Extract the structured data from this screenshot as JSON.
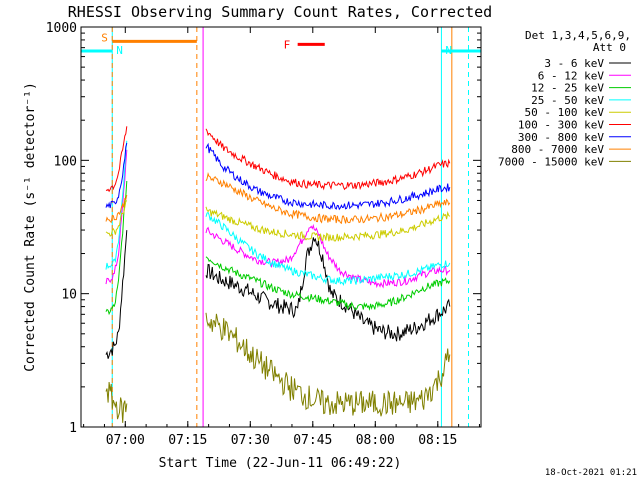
{
  "chart_data": {
    "type": "line",
    "title": "RHESSI Observing Summary Count Rates, Corrected",
    "xlabel": "Start Time (22-Jun-11 06:49:22)",
    "ylabel": "Corrected Count Rate (s⁻¹ detector⁻¹)",
    "x_unit": "minutes after 06:49:22",
    "xlim": [
      0,
      96
    ],
    "ylim": [
      1,
      1000
    ],
    "yscale": "log",
    "x_ticks": [
      {
        "label": "07:00",
        "value": 10.63
      },
      {
        "label": "07:15",
        "value": 25.63
      },
      {
        "label": "07:30",
        "value": 40.63
      },
      {
        "label": "07:45",
        "value": 55.63
      },
      {
        "label": "08:00",
        "value": 70.63
      },
      {
        "label": "08:15",
        "value": 85.63
      }
    ],
    "y_ticks": [
      {
        "label": "1",
        "value": 1
      },
      {
        "label": "10",
        "value": 10
      },
      {
        "label": "100",
        "value": 100
      },
      {
        "label": "1000",
        "value": 1000
      }
    ],
    "legend_title": [
      "Det 1,3,4,5,6,9,",
      "Att 0"
    ],
    "legend_position": "right",
    "series": [
      {
        "name": "3 - 6 keV",
        "color": "#000000",
        "x": [
          6,
          8,
          9,
          10,
          11
        ],
        "y": [
          3.5,
          4,
          5,
          12,
          30
        ],
        "x2": [
          30,
          33,
          36,
          40,
          44,
          48,
          52,
          54,
          56,
          58,
          60,
          64,
          68,
          72,
          76,
          80,
          84,
          87,
          88.5
        ],
        "y2": [
          15,
          13,
          12,
          10.5,
          9,
          8,
          7.5,
          18,
          28,
          19,
          10,
          8,
          6,
          5.2,
          5,
          5.5,
          6.5,
          7.5,
          8
        ]
      },
      {
        "name": "6 - 12 keV",
        "color": "#ff00ff",
        "x": [
          6,
          8,
          9,
          10,
          11
        ],
        "y": [
          12,
          14,
          20,
          45,
          120
        ],
        "x2": [
          30,
          34,
          38,
          42,
          46,
          50,
          53,
          55,
          57,
          59,
          62,
          66,
          70,
          74,
          78,
          82,
          86,
          88.5
        ],
        "y2": [
          30,
          25,
          21,
          18,
          17,
          18,
          25,
          33,
          28,
          20,
          15,
          13,
          12,
          12,
          12.5,
          14,
          15,
          15
        ]
      },
      {
        "name": "12 - 25 keV",
        "color": "#00cc00",
        "x": [
          6,
          8,
          9,
          10,
          11
        ],
        "y": [
          7,
          8,
          12,
          30,
          70
        ],
        "x2": [
          30,
          34,
          38,
          42,
          46,
          50,
          54,
          58,
          62,
          66,
          70,
          74,
          78,
          82,
          86,
          88.5
        ],
        "y2": [
          19,
          16,
          14,
          12.5,
          11,
          10,
          9.5,
          9,
          8.5,
          8,
          8,
          8.5,
          9.5,
          11,
          12,
          12.5
        ]
      },
      {
        "name": "25 - 50 keV",
        "color": "#00ffff",
        "x": [
          6,
          8,
          9,
          10,
          11
        ],
        "y": [
          16,
          17,
          25,
          55,
          140
        ],
        "x2": [
          30,
          34,
          38,
          42,
          46,
          50,
          54,
          58,
          62,
          66,
          70,
          74,
          78,
          82,
          86,
          88.5
        ],
        "y2": [
          40,
          32,
          25,
          20,
          17,
          15,
          14,
          13,
          12.5,
          12.5,
          13,
          13.5,
          14,
          15,
          16.5,
          17
        ]
      },
      {
        "name": "50 - 100 keV",
        "color": "#cccc00",
        "x": [
          6,
          8,
          9,
          10,
          11
        ],
        "y": [
          28,
          29,
          32,
          40,
          50
        ],
        "x2": [
          30,
          34,
          38,
          42,
          46,
          50,
          54,
          58,
          62,
          66,
          70,
          74,
          78,
          82,
          86,
          88.5
        ],
        "y2": [
          42,
          38,
          34,
          31,
          29,
          28,
          27,
          26.5,
          26.5,
          27,
          27.5,
          28.5,
          30,
          33,
          37,
          38
        ]
      },
      {
        "name": "100 - 300 keV",
        "color": "#ff0000",
        "x": [
          6,
          8,
          9,
          10,
          11
        ],
        "y": [
          60,
          65,
          80,
          120,
          180
        ],
        "x2": [
          30,
          34,
          38,
          42,
          46,
          50,
          54,
          58,
          62,
          66,
          70,
          74,
          78,
          82,
          86,
          88.5
        ],
        "y2": [
          170,
          125,
          105,
          90,
          78,
          70,
          66,
          65,
          65,
          65,
          67,
          70,
          75,
          82,
          92,
          95
        ]
      },
      {
        "name": "300 - 800 keV",
        "color": "#0000ff",
        "x": [
          6,
          8,
          9,
          10,
          11
        ],
        "y": [
          45,
          47,
          55,
          80,
          135
        ],
        "x2": [
          30,
          34,
          38,
          42,
          46,
          50,
          54,
          58,
          62,
          66,
          70,
          74,
          78,
          82,
          86,
          88.5
        ],
        "y2": [
          130,
          90,
          72,
          60,
          53,
          49,
          47,
          46,
          46,
          46,
          47,
          49,
          52,
          56,
          61,
          63
        ]
      },
      {
        "name": "800 - 7000 keV",
        "color": "#ff8000",
        "x": [
          6,
          8,
          9,
          10,
          11
        ],
        "y": [
          36,
          37,
          40,
          45,
          55
        ],
        "x2": [
          30,
          34,
          38,
          42,
          46,
          50,
          54,
          58,
          62,
          66,
          70,
          74,
          78,
          82,
          86,
          88.5
        ],
        "y2": [
          75,
          68,
          58,
          50,
          44,
          40,
          38,
          36.5,
          36,
          36,
          36.5,
          38,
          40,
          43,
          47,
          48
        ]
      },
      {
        "name": "7000 - 15000 keV",
        "color": "#808000",
        "x": [
          6,
          8,
          9,
          10,
          11
        ],
        "y": [
          2,
          1.5,
          1.4,
          1.3,
          1.5
        ],
        "x2": [
          30,
          34,
          38,
          42,
          46,
          50,
          54,
          58,
          62,
          66,
          70,
          74,
          78,
          82,
          86,
          88.5
        ],
        "y2": [
          6.5,
          5.5,
          4.3,
          3.2,
          2.5,
          2,
          1.7,
          1.5,
          1.5,
          1.5,
          1.5,
          1.5,
          1.5,
          1.6,
          2.3,
          3.5
        ]
      }
    ],
    "annotations": [
      {
        "label": "S",
        "color": "#ff8000",
        "x_range": [
          7.5,
          27.8
        ],
        "y": 780
      },
      {
        "label": "N",
        "color": "#00ffff",
        "x_range": [
          0,
          7.5
        ],
        "y": 660
      },
      {
        "label": "N",
        "color": "#00ffff",
        "x_range": [
          86.5,
          96
        ],
        "y": 660
      },
      {
        "label": "F",
        "color": "#ff0000",
        "x_range": [
          52,
          58.5
        ],
        "y": 740
      }
    ],
    "vertical_markers": [
      {
        "x": 0,
        "color": "#00ffff",
        "style": "solid"
      },
      {
        "x": 7.5,
        "color": "#00ffff",
        "style": "solid"
      },
      {
        "x": 7.5,
        "color": "#ff8000",
        "style": "dashed"
      },
      {
        "x": 27.8,
        "color": "#ff8000",
        "style": "dashed"
      },
      {
        "x": 29.3,
        "color": "#ff00ff",
        "style": "solid"
      },
      {
        "x": 86.5,
        "color": "#00ffff",
        "style": "solid"
      },
      {
        "x": 89,
        "color": "#ff8000",
        "style": "solid"
      },
      {
        "x": 93,
        "color": "#00ffff",
        "style": "dashed"
      }
    ]
  },
  "footer": {
    "timestamp": "18-Oct-2021 01:21"
  }
}
